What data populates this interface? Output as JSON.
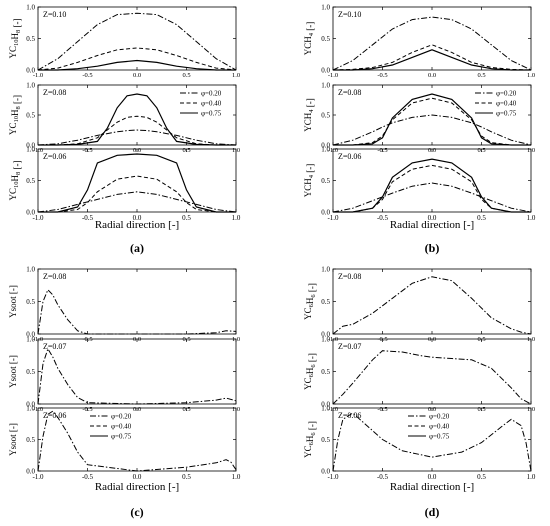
{
  "figure": {
    "panel_letters": [
      "(a)",
      "(b)",
      "(c)",
      "(d)"
    ],
    "xlabel": "Radial direction [-]",
    "xticks": [
      "-1.0",
      "-0.5",
      "0.0",
      "0.5",
      "1.0"
    ],
    "yticks": [
      "0.0",
      "0.5",
      "1.0"
    ]
  },
  "legend": [
    {
      "label": "φ=0.20",
      "dash": "dashdot"
    },
    {
      "label": "φ=0.40",
      "dash": "dash"
    },
    {
      "label": "φ=0.75",
      "dash": "solid"
    }
  ],
  "chart_data": [
    {
      "type": "line",
      "panel": "(a)",
      "ylabel": "YC10H8 [-]",
      "ylabel_main": "YC",
      "ylabel_sub1": "10",
      "ylabel_mid": "H",
      "ylabel_sub2": "8",
      "ylabel_tail": " [-]",
      "subplots": [
        {
          "annotation": "Z=0.10",
          "legend": false,
          "xlim": [
            -1,
            1
          ],
          "ylim": [
            0,
            1
          ],
          "x": [
            -1.0,
            -0.8,
            -0.6,
            -0.4,
            -0.2,
            0.0,
            0.2,
            0.4,
            0.6,
            0.8,
            1.0
          ],
          "series": [
            {
              "values": [
                0.0,
                0.18,
                0.45,
                0.72,
                0.88,
                0.9,
                0.88,
                0.72,
                0.45,
                0.18,
                0.0
              ],
              "dash": "dashdot"
            },
            {
              "values": [
                0.0,
                0.03,
                0.12,
                0.23,
                0.32,
                0.35,
                0.32,
                0.23,
                0.12,
                0.03,
                0.0
              ],
              "dash": "dash"
            },
            {
              "values": [
                0.0,
                0.0,
                0.02,
                0.06,
                0.12,
                0.15,
                0.12,
                0.06,
                0.02,
                0.0,
                0.0
              ],
              "dash": "solid"
            }
          ]
        },
        {
          "annotation": "Z=0.08",
          "legend": true,
          "xlim": [
            -1,
            1
          ],
          "ylim": [
            0,
            1
          ],
          "x": [
            -1.0,
            -0.8,
            -0.6,
            -0.4,
            -0.3,
            -0.2,
            -0.1,
            0.0,
            0.1,
            0.2,
            0.3,
            0.4,
            0.6,
            0.8,
            1.0
          ],
          "series": [
            {
              "values": [
                0.0,
                0.02,
                0.08,
                0.16,
                0.19,
                0.22,
                0.24,
                0.25,
                0.24,
                0.22,
                0.19,
                0.16,
                0.08,
                0.02,
                0.0
              ],
              "dash": "dashdot"
            },
            {
              "values": [
                0.0,
                0.0,
                0.02,
                0.12,
                0.25,
                0.38,
                0.46,
                0.48,
                0.46,
                0.38,
                0.25,
                0.12,
                0.02,
                0.0,
                0.0
              ],
              "dash": "dash"
            },
            {
              "values": [
                0.0,
                0.0,
                0.01,
                0.06,
                0.28,
                0.62,
                0.82,
                0.85,
                0.82,
                0.62,
                0.28,
                0.06,
                0.01,
                0.0,
                0.0
              ],
              "dash": "solid"
            }
          ]
        },
        {
          "annotation": "Z=0.06",
          "legend": false,
          "xlim": [
            -1,
            1
          ],
          "ylim": [
            0,
            1
          ],
          "x": [
            -1.0,
            -0.8,
            -0.6,
            -0.5,
            -0.4,
            -0.2,
            0.0,
            0.2,
            0.4,
            0.5,
            0.6,
            0.8,
            1.0
          ],
          "series": [
            {
              "values": [
                0.0,
                0.04,
                0.12,
                0.16,
                0.2,
                0.28,
                0.32,
                0.28,
                0.2,
                0.16,
                0.12,
                0.04,
                0.0
              ],
              "dash": "dashdot"
            },
            {
              "values": [
                0.0,
                0.0,
                0.04,
                0.15,
                0.32,
                0.52,
                0.57,
                0.52,
                0.32,
                0.15,
                0.04,
                0.0,
                0.0
              ],
              "dash": "dash"
            },
            {
              "values": [
                0.0,
                0.0,
                0.08,
                0.35,
                0.78,
                0.9,
                0.92,
                0.9,
                0.78,
                0.35,
                0.08,
                0.0,
                0.0
              ],
              "dash": "solid"
            }
          ]
        }
      ]
    },
    {
      "type": "line",
      "panel": "(b)",
      "ylabel": "YCH4 [-]",
      "ylabel_main": "YCH",
      "ylabel_sub1": "4",
      "ylabel_mid": "",
      "ylabel_sub2": "",
      "ylabel_tail": " [-]",
      "subplots": [
        {
          "annotation": "Z=0.10",
          "legend": false,
          "xlim": [
            -1,
            1
          ],
          "ylim": [
            0,
            1
          ],
          "x": [
            -1.0,
            -0.8,
            -0.6,
            -0.4,
            -0.2,
            0.0,
            0.2,
            0.4,
            0.6,
            0.8,
            1.0
          ],
          "series": [
            {
              "values": [
                0.0,
                0.15,
                0.4,
                0.65,
                0.8,
                0.84,
                0.8,
                0.65,
                0.4,
                0.15,
                0.0
              ],
              "dash": "dashdot"
            },
            {
              "values": [
                0.0,
                0.01,
                0.04,
                0.12,
                0.28,
                0.4,
                0.28,
                0.12,
                0.04,
                0.01,
                0.0
              ],
              "dash": "dash"
            },
            {
              "values": [
                0.0,
                0.0,
                0.02,
                0.08,
                0.2,
                0.32,
                0.2,
                0.08,
                0.02,
                0.0,
                0.0
              ],
              "dash": "solid"
            }
          ]
        },
        {
          "annotation": "Z=0.08",
          "legend": true,
          "xlim": [
            -1,
            1
          ],
          "ylim": [
            0,
            1
          ],
          "x": [
            -1.0,
            -0.8,
            -0.6,
            -0.5,
            -0.4,
            -0.2,
            0.0,
            0.2,
            0.4,
            0.5,
            0.6,
            0.8,
            1.0
          ],
          "series": [
            {
              "values": [
                0.0,
                0.08,
                0.22,
                0.3,
                0.37,
                0.46,
                0.5,
                0.46,
                0.37,
                0.3,
                0.22,
                0.08,
                0.0
              ],
              "dash": "dashdot"
            },
            {
              "values": [
                0.0,
                0.0,
                0.04,
                0.15,
                0.42,
                0.7,
                0.78,
                0.7,
                0.42,
                0.15,
                0.04,
                0.0,
                0.0
              ],
              "dash": "dash"
            },
            {
              "values": [
                0.0,
                0.0,
                0.02,
                0.12,
                0.45,
                0.76,
                0.85,
                0.76,
                0.45,
                0.12,
                0.02,
                0.0,
                0.0
              ],
              "dash": "solid"
            }
          ]
        },
        {
          "annotation": "Z=0.06",
          "legend": false,
          "xlim": [
            -1,
            1
          ],
          "ylim": [
            0,
            1
          ],
          "x": [
            -1.0,
            -0.8,
            -0.6,
            -0.5,
            -0.4,
            -0.2,
            0.0,
            0.2,
            0.4,
            0.5,
            0.6,
            0.8,
            1.0
          ],
          "series": [
            {
              "values": [
                0.0,
                0.06,
                0.18,
                0.24,
                0.3,
                0.41,
                0.46,
                0.41,
                0.3,
                0.24,
                0.18,
                0.06,
                0.0
              ],
              "dash": "dashdot"
            },
            {
              "values": [
                0.0,
                0.0,
                0.06,
                0.2,
                0.48,
                0.68,
                0.74,
                0.68,
                0.48,
                0.2,
                0.06,
                0.0,
                0.0
              ],
              "dash": "dash"
            },
            {
              "values": [
                0.0,
                0.0,
                0.06,
                0.24,
                0.55,
                0.78,
                0.84,
                0.78,
                0.55,
                0.24,
                0.06,
                0.0,
                0.0
              ],
              "dash": "solid"
            }
          ]
        }
      ]
    },
    {
      "type": "line",
      "panel": "(c)",
      "ylabel": "Ysoot [-]",
      "ylabel_main": "Ysoot",
      "ylabel_sub1": "",
      "ylabel_mid": "",
      "ylabel_sub2": "",
      "ylabel_tail": " [-]",
      "subplots": [
        {
          "annotation": "Z=0.08",
          "legend": false,
          "xlim": [
            -1,
            1
          ],
          "ylim": [
            0,
            1
          ],
          "x": [
            -1.0,
            -0.95,
            -0.9,
            -0.85,
            -0.8,
            -0.7,
            -0.6,
            -0.5,
            0.0,
            0.5,
            0.8,
            0.9,
            1.0
          ],
          "series": [
            {
              "values": [
                0.0,
                0.5,
                0.68,
                0.6,
                0.45,
                0.22,
                0.05,
                0.0,
                0.0,
                0.0,
                0.02,
                0.05,
                0.04
              ],
              "dash": "dashdot"
            }
          ]
        },
        {
          "annotation": "Z=0.07",
          "legend": false,
          "xlim": [
            -1,
            1
          ],
          "ylim": [
            0,
            1
          ],
          "x": [
            -1.0,
            -0.95,
            -0.9,
            -0.85,
            -0.8,
            -0.7,
            -0.6,
            -0.5,
            0.0,
            0.5,
            0.8,
            0.9,
            1.0
          ],
          "series": [
            {
              "values": [
                0.0,
                0.62,
                0.85,
                0.72,
                0.55,
                0.3,
                0.1,
                0.02,
                0.0,
                0.02,
                0.06,
                0.09,
                0.05
              ],
              "dash": "dashdot"
            }
          ]
        },
        {
          "annotation": "Z=0.06",
          "legend": true,
          "xlim": [
            -1,
            1
          ],
          "ylim": [
            0,
            1
          ],
          "x": [
            -1.0,
            -0.95,
            -0.9,
            -0.85,
            -0.8,
            -0.7,
            -0.6,
            -0.5,
            0.0,
            0.5,
            0.8,
            0.9,
            0.95,
            1.0
          ],
          "series": [
            {
              "values": [
                0.0,
                0.55,
                0.9,
                0.95,
                0.85,
                0.6,
                0.3,
                0.1,
                0.0,
                0.06,
                0.13,
                0.18,
                0.14,
                0.02
              ],
              "dash": "dashdot"
            }
          ]
        }
      ]
    },
    {
      "type": "line",
      "panel": "(d)",
      "ylabel": "YC6H6 [-]",
      "ylabel_main": "YC",
      "ylabel_sub1": "6",
      "ylabel_mid": "H",
      "ylabel_sub2": "6",
      "ylabel_tail": " [-]",
      "subplots": [
        {
          "annotation": "Z=0.08",
          "legend": false,
          "xlim": [
            -1,
            1
          ],
          "ylim": [
            0,
            1
          ],
          "x": [
            -1.0,
            -0.9,
            -0.8,
            -0.6,
            -0.4,
            -0.2,
            0.0,
            0.2,
            0.4,
            0.6,
            0.8,
            0.9,
            1.0
          ],
          "series": [
            {
              "values": [
                0.0,
                0.12,
                0.15,
                0.32,
                0.55,
                0.78,
                0.88,
                0.82,
                0.55,
                0.25,
                0.08,
                0.03,
                0.0
              ],
              "dash": "dashdot"
            }
          ]
        },
        {
          "annotation": "Z=0.07",
          "legend": false,
          "xlim": [
            -1,
            1
          ],
          "ylim": [
            0,
            1
          ],
          "x": [
            -1.0,
            -0.9,
            -0.8,
            -0.6,
            -0.5,
            -0.3,
            -0.1,
            0.0,
            0.2,
            0.4,
            0.6,
            0.8,
            0.9,
            1.0
          ],
          "series": [
            {
              "values": [
                0.0,
                0.15,
                0.32,
                0.68,
                0.82,
                0.8,
                0.74,
                0.72,
                0.7,
                0.68,
                0.55,
                0.25,
                0.08,
                0.0
              ],
              "dash": "dashdot"
            }
          ]
        },
        {
          "annotation": "Z=0.06",
          "legend": true,
          "xlim": [
            -1,
            1
          ],
          "ylim": [
            0,
            1
          ],
          "x": [
            -1.0,
            -0.95,
            -0.9,
            -0.8,
            -0.7,
            -0.5,
            -0.3,
            0.0,
            0.3,
            0.5,
            0.7,
            0.8,
            0.9,
            0.95,
            1.0
          ],
          "series": [
            {
              "values": [
                0.0,
                0.5,
                0.82,
                0.92,
                0.78,
                0.5,
                0.32,
                0.22,
                0.3,
                0.45,
                0.7,
                0.82,
                0.72,
                0.45,
                0.0
              ],
              "dash": "dashdot"
            }
          ]
        }
      ]
    }
  ]
}
